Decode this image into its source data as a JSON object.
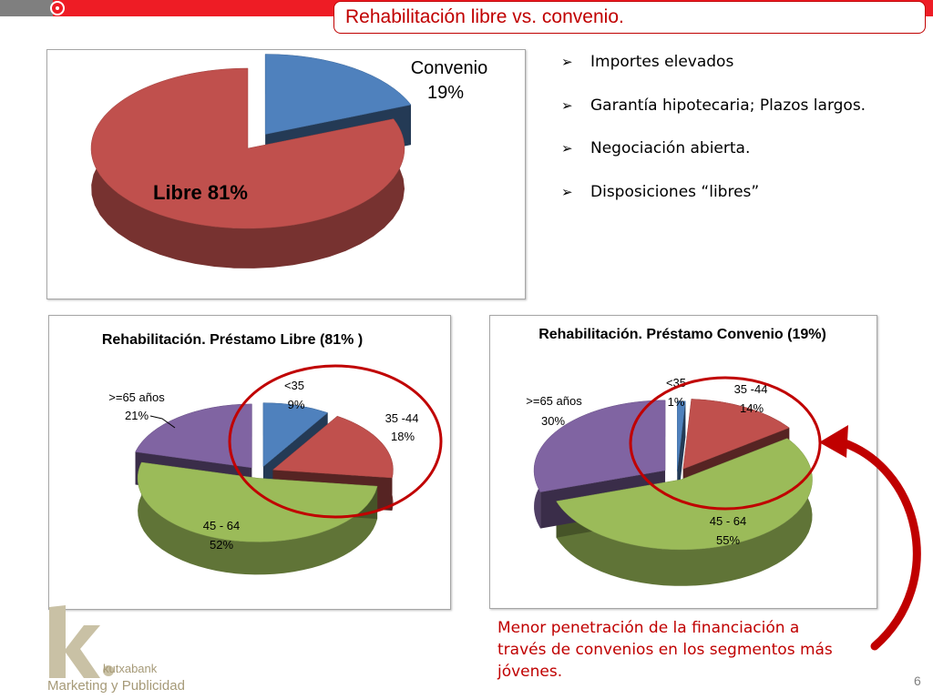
{
  "header": {
    "title": "Rehabilitación libre vs. convenio."
  },
  "bullets": [
    "Importes elevados",
    "Garantía hipotecaria; Plazos largos.",
    "Negociación abierta.",
    "Disposiciones “libres”"
  ],
  "bullet_icon": "arrow-bullet-icon",
  "caption": [
    "Menor penetración de la financiación a",
    "través de convenios en los segmentos más",
    "jóvenes."
  ],
  "page_number": "6",
  "logo": {
    "company": "kutxabank",
    "department": "Marketing y Publicidad"
  },
  "colors": {
    "brand_red": "#ee1c25",
    "title_red": "#c00000",
    "caption_red": "#c00000",
    "pie_blue": "#4f81bd",
    "pie_red": "#c0504d",
    "pie_green": "#9bbb59",
    "pie_purple": "#8064a2",
    "highlight_circle": "#c00000",
    "logo_beige": "#c9c1a5"
  },
  "chart_data": [
    {
      "type": "pie",
      "title": "",
      "labels": [
        "Convenio",
        "Libre"
      ],
      "values": [
        19,
        81
      ],
      "value_labels": [
        "19%",
        "81%"
      ],
      "colors": [
        "#4f81bd",
        "#c0504d"
      ],
      "exploded": "Convenio",
      "style": "3d",
      "legend": "none"
    },
    {
      "type": "pie",
      "title": "Rehabilitación. Préstamo Libre (81% )",
      "labels": [
        "<35",
        "35 -44",
        "45 - 64",
        ">=65 años"
      ],
      "values": [
        9,
        18,
        52,
        21
      ],
      "value_labels": [
        "9%",
        "18%",
        "52%",
        "21%"
      ],
      "colors": [
        "#4f81bd",
        "#c0504d",
        "#9bbb59",
        "#8064a2"
      ],
      "exploded": "all",
      "style": "3d",
      "legend": "none",
      "highlight": [
        "<35",
        "35 -44"
      ]
    },
    {
      "type": "pie",
      "title": "Rehabilitación. Préstamo Convenio (19%)",
      "labels": [
        "<35",
        "35 -44",
        "45 - 64",
        ">=65 años"
      ],
      "values": [
        1,
        14,
        55,
        30
      ],
      "value_labels": [
        "1%",
        "14%",
        "55%",
        "30%"
      ],
      "colors": [
        "#4f81bd",
        "#c0504d",
        "#9bbb59",
        "#8064a2"
      ],
      "exploded": "all",
      "style": "3d",
      "legend": "none",
      "highlight": [
        "<35",
        "35 -44"
      ]
    }
  ]
}
